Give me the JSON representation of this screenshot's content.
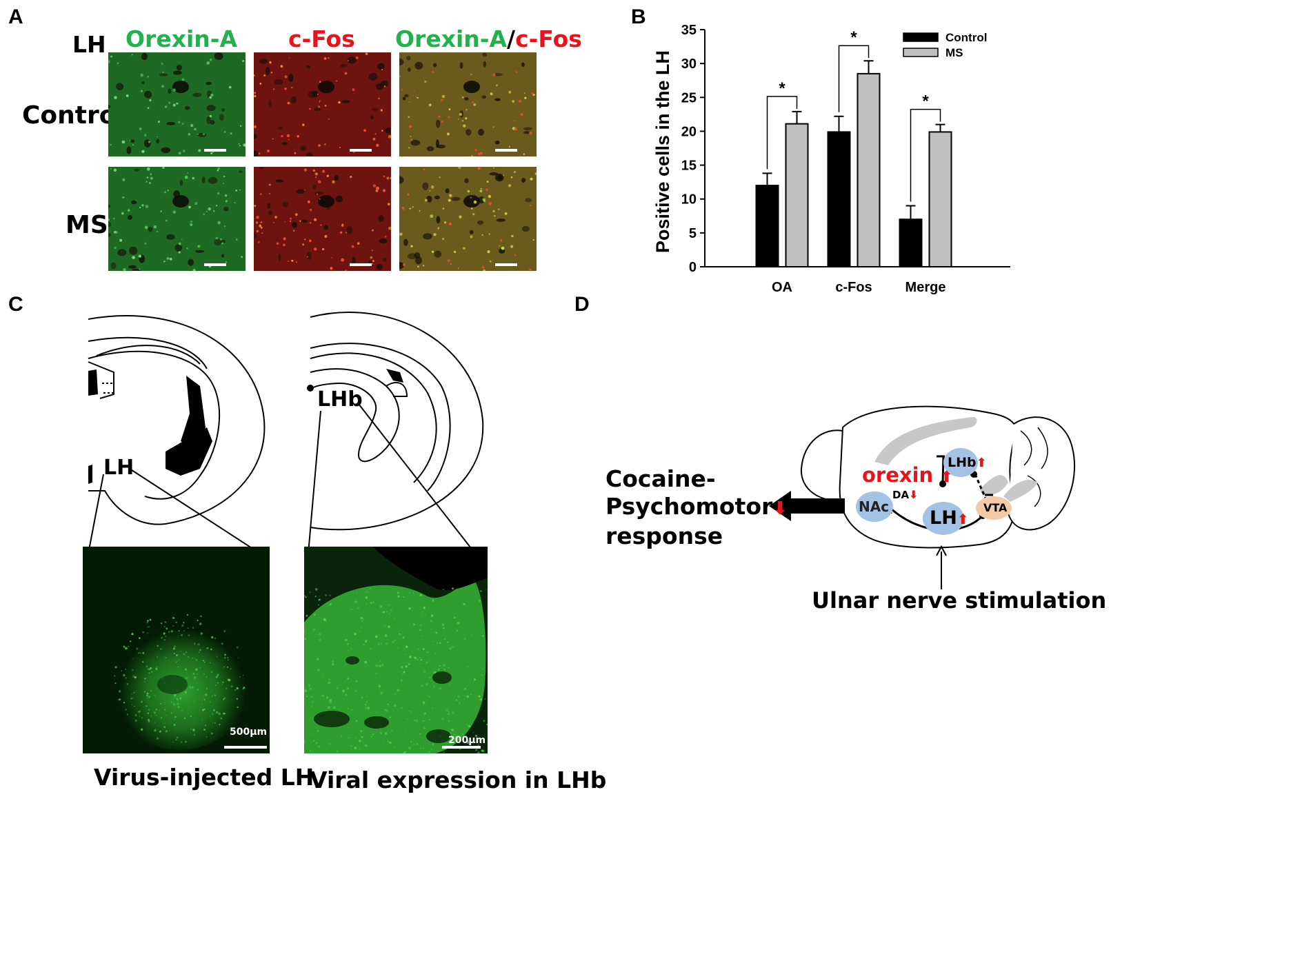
{
  "panels": {
    "A": {
      "label": "A",
      "region": "LH",
      "col_headers": {
        "orexin": "Orexin-A",
        "cfos": "c-Fos",
        "merge_orexin": "Orexin-A",
        "merge_slash": "/",
        "merge_cfos": "c-Fos"
      },
      "rows": [
        "Control",
        "MS"
      ],
      "colors": {
        "green": "#22b14c",
        "red": "#e8141b"
      }
    },
    "B": {
      "label": "B",
      "legend": [
        "Control",
        "MS"
      ],
      "significance": "*"
    },
    "C": {
      "label": "C",
      "left_region": "LH",
      "right_region": "LHb",
      "left_scale": "500µm",
      "right_scale": "200µm",
      "left_caption": "Virus-injected LH",
      "right_caption": "Viral expression in LHb"
    },
    "D": {
      "label": "D",
      "response_line1": "Cocaine-",
      "response_line2": "Psychomotor",
      "response_line3": "response",
      "orexin": "orexin",
      "nac": "NAc",
      "da": "DA",
      "lh": "LH",
      "lhb": "LHb",
      "vta": "VTA",
      "stimulation": "Ulnar nerve stimulation",
      "arrow_up": "⬆",
      "arrow_down": "⬇"
    }
  },
  "chart_data": {
    "type": "bar",
    "categories": [
      "OA",
      "c-Fos",
      "Merge"
    ],
    "series": [
      {
        "name": "Control",
        "values": [
          12.0,
          19.9,
          7.0
        ],
        "errors": [
          1.8,
          2.3,
          2.0
        ],
        "color": "#000000"
      },
      {
        "name": "MS",
        "values": [
          21.1,
          28.5,
          19.9
        ],
        "errors": [
          1.8,
          1.9,
          1.1
        ],
        "color": "#c0c0c0"
      }
    ],
    "significance": [
      "*",
      "*",
      "*"
    ],
    "ylabel": "Positive cells in the LH",
    "xlabel": "",
    "ylim": [
      0,
      35
    ],
    "yticks": [
      0,
      5,
      10,
      15,
      20,
      25,
      30,
      35
    ],
    "legend_position": "top-right",
    "grid": false
  }
}
